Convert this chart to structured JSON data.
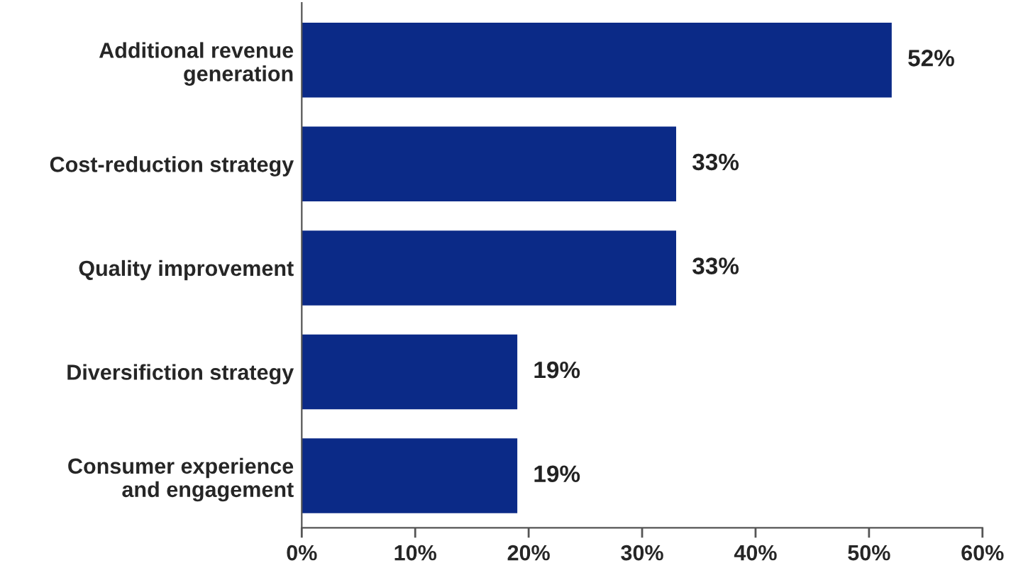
{
  "chart_data": {
    "type": "bar",
    "orientation": "horizontal",
    "categories": [
      "Additional revenue\ngeneration",
      "Cost-reduction strategy",
      "Quality improvement",
      "Diversifiction strategy",
      "Consumer experience\nand engagement"
    ],
    "values": [
      52,
      33,
      33,
      19,
      19
    ],
    "value_labels": [
      "52%",
      "33%",
      "33%",
      "19%",
      "19%"
    ],
    "color": "#0b2a87",
    "xlim": [
      0,
      60
    ],
    "xticks": [
      {
        "value": 0,
        "label": "0%"
      },
      {
        "value": 10,
        "label": "10%"
      },
      {
        "value": 20,
        "label": "20%"
      },
      {
        "value": 30,
        "label": "30%"
      },
      {
        "value": 40,
        "label": "40%"
      },
      {
        "value": 50,
        "label": "50%"
      },
      {
        "value": 60,
        "label": "60%"
      }
    ],
    "grid": false
  }
}
